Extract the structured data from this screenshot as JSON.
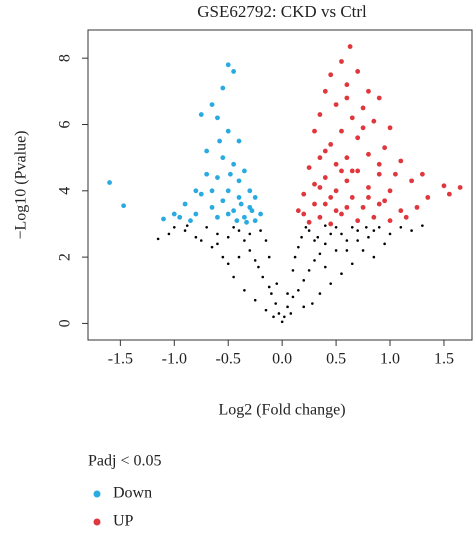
{
  "chart_data": {
    "type": "scatter",
    "title": "GSE62792: CKD vs Ctrl",
    "xlabel": "Log2 (Fold change)",
    "ylabel": "−Log10 (Pvalue)",
    "legend_title": "Padj < 0.05",
    "xlim": [
      -1.8,
      1.76
    ],
    "ylim": [
      -0.5,
      8.85
    ],
    "xticks": [
      -1.5,
      {
        "value": -1.0,
        "label": "-1.0"
      },
      -0.5,
      {
        "value": 0.0,
        "label": "0.0"
      },
      0.5,
      {
        "value": 1.0,
        "label": "1.0"
      },
      1.5
    ],
    "yticks": [
      0,
      2,
      4,
      6,
      8
    ],
    "series": [
      {
        "color": "#000000",
        "x": [
          0,
          0.02,
          -0.03,
          0.05,
          -0.06,
          0.1,
          -0.1,
          0.15,
          -0.12,
          0.2,
          -0.18,
          0.25,
          -0.22,
          0.3,
          -0.25,
          0.35,
          -0.3,
          0.4,
          -0.35,
          0.45,
          -0.4,
          0.5,
          -0.45,
          0.12,
          0.18,
          -0.2,
          0.22,
          -0.15,
          0.6,
          0.7,
          0.8,
          0.9,
          1.0,
          1.1,
          0.65,
          0.75,
          0.85,
          -0.6,
          -0.7,
          -0.8,
          -0.9,
          -1.0,
          -1.15,
          -0.55,
          -0.65,
          0.55,
          0.45,
          0.35,
          -0.35,
          -0.45,
          -0.5,
          0.28,
          -0.25,
          0.08,
          -0.08,
          0.6,
          0.5,
          0.4,
          -0.4,
          0.3,
          0.25,
          -0.3,
          0.95,
          1.2,
          -1.05,
          0.15,
          -0.12,
          0.7,
          0.55,
          -0.75,
          0.2,
          -0.15,
          0.05,
          -0.05,
          0.1,
          0.85,
          0.65,
          -0.6,
          -0.5,
          0.4,
          0.33,
          -0.88,
          0.78,
          1.3
        ],
        "values": [
          0.05,
          0.2,
          0.3,
          0.5,
          0.6,
          0.8,
          0.9,
          1.0,
          1.1,
          1.3,
          1.4,
          1.6,
          1.7,
          1.9,
          1.9,
          2.1,
          2.2,
          2.4,
          2.5,
          2.7,
          2.8,
          2.9,
          2.9,
          2.0,
          2.6,
          2.8,
          2.9,
          2.5,
          2.5,
          2.8,
          2.6,
          2.9,
          2.7,
          2.9,
          1.8,
          2.2,
          2.0,
          2.7,
          2.9,
          2.6,
          2.8,
          2.9,
          2.55,
          2.0,
          2.3,
          1.5,
          1.2,
          0.9,
          1.0,
          1.4,
          1.8,
          0.6,
          0.7,
          0.3,
          0.2,
          2.2,
          2.2,
          1.7,
          2.0,
          2.5,
          2.8,
          2.7,
          2.4,
          2.8,
          2.7,
          2.3,
          2.0,
          2.5,
          2.7,
          2.5,
          0.5,
          0.4,
          0.9,
          1.2,
          1.6,
          2.8,
          2.9,
          2.4,
          2.6,
          2.95,
          2.6,
          2.95,
          2.9,
          2.95
        ]
      },
      {
        "name": "Down",
        "color": "#29abe2",
        "x": [
          -1.6,
          -1.47,
          -1.1,
          -0.95,
          -0.9,
          -0.85,
          -0.8,
          -0.75,
          -0.7,
          -0.65,
          -0.6,
          -0.55,
          -0.5,
          -0.45,
          -0.4,
          -0.35,
          -0.3,
          -0.25,
          -0.2,
          -0.5,
          -0.45,
          -0.55,
          -0.65,
          -0.75,
          -0.6,
          -0.5,
          -0.4,
          -0.7,
          -0.55,
          -0.45,
          -0.35,
          -0.6,
          -0.4,
          -0.3,
          -0.25,
          -0.5,
          -0.42,
          -0.33,
          -0.65,
          -0.8,
          -1.0,
          -0.58,
          -0.38,
          -0.28,
          -0.48
        ],
        "values": [
          4.25,
          3.55,
          3.15,
          3.2,
          3.6,
          3.1,
          3.3,
          3.9,
          4.5,
          3.5,
          3.2,
          3.7,
          4.0,
          3.4,
          3.8,
          3.2,
          3.5,
          3.1,
          3.3,
          7.8,
          7.6,
          7.1,
          6.6,
          6.3,
          6.2,
          5.8,
          5.5,
          5.2,
          5.0,
          4.8,
          4.6,
          4.4,
          4.3,
          4.0,
          3.8,
          3.3,
          3.1,
          3.05,
          4.0,
          4.0,
          3.3,
          5.5,
          3.6,
          3.4,
          4.5
        ]
      },
      {
        "name": "UP",
        "color": "#e0373e",
        "x": [
          0.63,
          0.55,
          0.45,
          0.7,
          0.8,
          0.6,
          0.4,
          0.9,
          0.5,
          0.75,
          0.65,
          0.35,
          0.85,
          1.0,
          0.55,
          0.3,
          0.7,
          0.45,
          0.95,
          0.6,
          0.8,
          0.35,
          1.1,
          0.5,
          0.25,
          0.7,
          0.9,
          0.4,
          0.6,
          1.2,
          0.3,
          0.8,
          1.0,
          0.5,
          0.2,
          0.65,
          1.5,
          1.55,
          1.35,
          1.65,
          1.3,
          1.25,
          0.4,
          0.75,
          0.9,
          1.1,
          0.2,
          0.35,
          0.55,
          0.7,
          0.85,
          1.0,
          0.25,
          0.45,
          0.6,
          0.95,
          0.15,
          1.15,
          0.3,
          0.5,
          0.8,
          0.65,
          0.4,
          0.75,
          0.6,
          0.9,
          1.05,
          0.45,
          0.35,
          0.55
        ],
        "values": [
          8.35,
          7.9,
          7.5,
          7.6,
          7.0,
          7.2,
          7.0,
          6.8,
          6.6,
          6.5,
          6.2,
          6.3,
          6.1,
          5.9,
          5.8,
          5.8,
          5.6,
          5.4,
          5.3,
          5.0,
          5.1,
          5.0,
          4.9,
          4.8,
          4.7,
          4.6,
          4.5,
          4.4,
          4.3,
          4.3,
          4.2,
          4.1,
          4.0,
          4.0,
          3.9,
          3.8,
          4.15,
          3.9,
          3.8,
          4.1,
          4.5,
          3.5,
          3.6,
          3.5,
          3.6,
          3.4,
          3.3,
          3.2,
          3.3,
          3.1,
          3.2,
          3.1,
          3.05,
          3.0,
          3.5,
          3.7,
          3.4,
          3.2,
          3.6,
          3.4,
          3.8,
          4.6,
          5.2,
          5.9,
          6.8,
          4.8,
          4.5,
          3.8,
          4.1,
          4.6
        ]
      }
    ]
  }
}
